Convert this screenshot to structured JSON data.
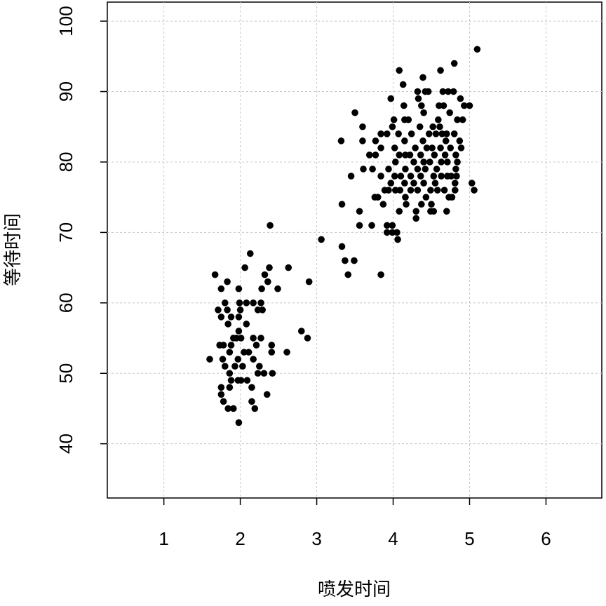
{
  "chart_data": {
    "type": "scatter",
    "xlabel": "喷发时间",
    "ylabel": "等待时间",
    "xlim": [
      0.26,
      6.73
    ],
    "ylim": [
      32.3,
      102.7
    ],
    "xticks": [
      1,
      2,
      3,
      4,
      5,
      6
    ],
    "yticks": [
      40,
      50,
      60,
      70,
      80,
      90,
      100
    ],
    "grid": true,
    "color": "#000000",
    "series": [
      {
        "x": [
          1.6,
          1.67,
          1.75,
          1.83,
          1.71,
          1.8,
          1.75,
          1.88,
          1.84,
          1.83,
          1.73,
          1.78,
          1.88,
          1.91,
          1.77,
          1.8,
          1.86,
          1.75,
          1.75,
          1.78,
          1.84,
          1.91,
          1.86,
          1.88,
          1.86,
          1.93,
          1.98,
          1.99,
          2.0,
          1.98,
          1.98,
          1.95,
          2.01,
          1.97,
          2.03,
          2.05,
          1.97,
          2.01,
          1.98,
          2.06,
          2.13,
          2.08,
          2.08,
          2.11,
          2.09,
          2.17,
          2.17,
          2.17,
          2.15,
          2.15,
          2.19,
          2.21,
          2.23,
          2.27,
          2.28,
          2.27,
          2.23,
          2.25,
          2.31,
          2.29,
          2.32,
          2.35,
          2.38,
          2.39,
          2.36,
          2.41,
          2.41,
          2.42,
          2.49,
          2.63,
          2.61,
          2.8,
          2.88,
          2.9,
          3.06,
          3.32,
          3.33,
          3.33,
          3.37,
          3.41,
          3.45,
          3.49,
          3.5,
          3.56,
          3.56,
          3.6,
          3.6,
          3.61,
          3.69,
          3.72,
          3.73,
          3.77,
          3.77,
          3.76,
          3.8,
          3.84,
          3.84,
          3.84,
          3.84,
          3.87,
          3.89,
          3.92,
          3.92,
          3.92,
          3.94,
          3.94,
          3.97,
          3.97,
          3.99,
          3.99,
          3.99,
          4.01,
          4.02,
          4.03,
          4.02,
          4.03,
          4.05,
          4.06,
          4.08,
          4.07,
          4.08,
          4.1,
          4.09,
          4.08,
          4.13,
          4.14,
          4.15,
          4.15,
          4.16,
          4.16,
          4.15,
          4.16,
          4.17,
          4.2,
          4.22,
          4.23,
          4.23,
          4.24,
          4.27,
          4.27,
          4.29,
          4.3,
          4.3,
          4.32,
          4.32,
          4.32,
          4.33,
          4.35,
          4.36,
          4.36,
          4.37,
          4.37,
          4.39,
          4.39,
          4.4,
          4.4,
          4.4,
          4.42,
          4.42,
          4.43,
          4.44,
          4.46,
          4.47,
          4.48,
          4.49,
          4.49,
          4.5,
          4.51,
          4.52,
          4.53,
          4.53,
          4.54,
          4.55,
          4.56,
          4.57,
          4.58,
          4.59,
          4.6,
          4.61,
          4.62,
          4.62,
          4.63,
          4.63,
          4.64,
          4.65,
          4.66,
          4.67,
          4.68,
          4.69,
          4.7,
          4.7,
          4.71,
          4.71,
          4.72,
          4.73,
          4.74,
          4.75,
          4.76,
          4.77,
          4.79,
          4.8,
          4.8,
          4.81,
          4.81,
          4.82,
          4.82,
          4.83,
          4.84,
          4.84,
          4.87,
          4.88,
          4.89,
          4.91,
          4.93,
          5.0,
          5.03,
          5.06,
          5.1
        ],
        "values": [
          52,
          64,
          62,
          63,
          59,
          60,
          58,
          58,
          57,
          59,
          54,
          54,
          54,
          55,
          52,
          51,
          53,
          48,
          47,
          46,
          45,
          45,
          48,
          49,
          50,
          51,
          62,
          60,
          59,
          58,
          56,
          55,
          55,
          52,
          51,
          53,
          49,
          49,
          43,
          65,
          67,
          60,
          57,
          53,
          49,
          60,
          55,
          52,
          48,
          46,
          45,
          54,
          59,
          60,
          62,
          55,
          50,
          51,
          50,
          59,
          64,
          47,
          65,
          71,
          63,
          54,
          53,
          50,
          62,
          65,
          53,
          56,
          55,
          63,
          69,
          83,
          74,
          68,
          66,
          64,
          78,
          66,
          87,
          73,
          71,
          85,
          83,
          79,
          81,
          71,
          79,
          83,
          81,
          75,
          75,
          64,
          84,
          82,
          78,
          74,
          76,
          84,
          71,
          70,
          79,
          76,
          89,
          77,
          85,
          71,
          70,
          86,
          82,
          80,
          78,
          76,
          70,
          69,
          93,
          84,
          81,
          78,
          76,
          73,
          91,
          88,
          86,
          83,
          81,
          79,
          77,
          75,
          74,
          86,
          81,
          78,
          76,
          84,
          80,
          77,
          82,
          73,
          72,
          90,
          79,
          76,
          89,
          85,
          81,
          78,
          88,
          74,
          92,
          83,
          80,
          77,
          87,
          90,
          79,
          75,
          82,
          90,
          84,
          80,
          76,
          73,
          74,
          82,
          85,
          78,
          73,
          81,
          77,
          84,
          79,
          76,
          86,
          88,
          85,
          93,
          82,
          80,
          78,
          84,
          90,
          88,
          76,
          81,
          83,
          84,
          73,
          80,
          78,
          90,
          75,
          87,
          82,
          78,
          75,
          90,
          94,
          84,
          77,
          76,
          81,
          79,
          78,
          86,
          80,
          83,
          89,
          82,
          86,
          88,
          88,
          77,
          76,
          96
        ]
      }
    ]
  }
}
